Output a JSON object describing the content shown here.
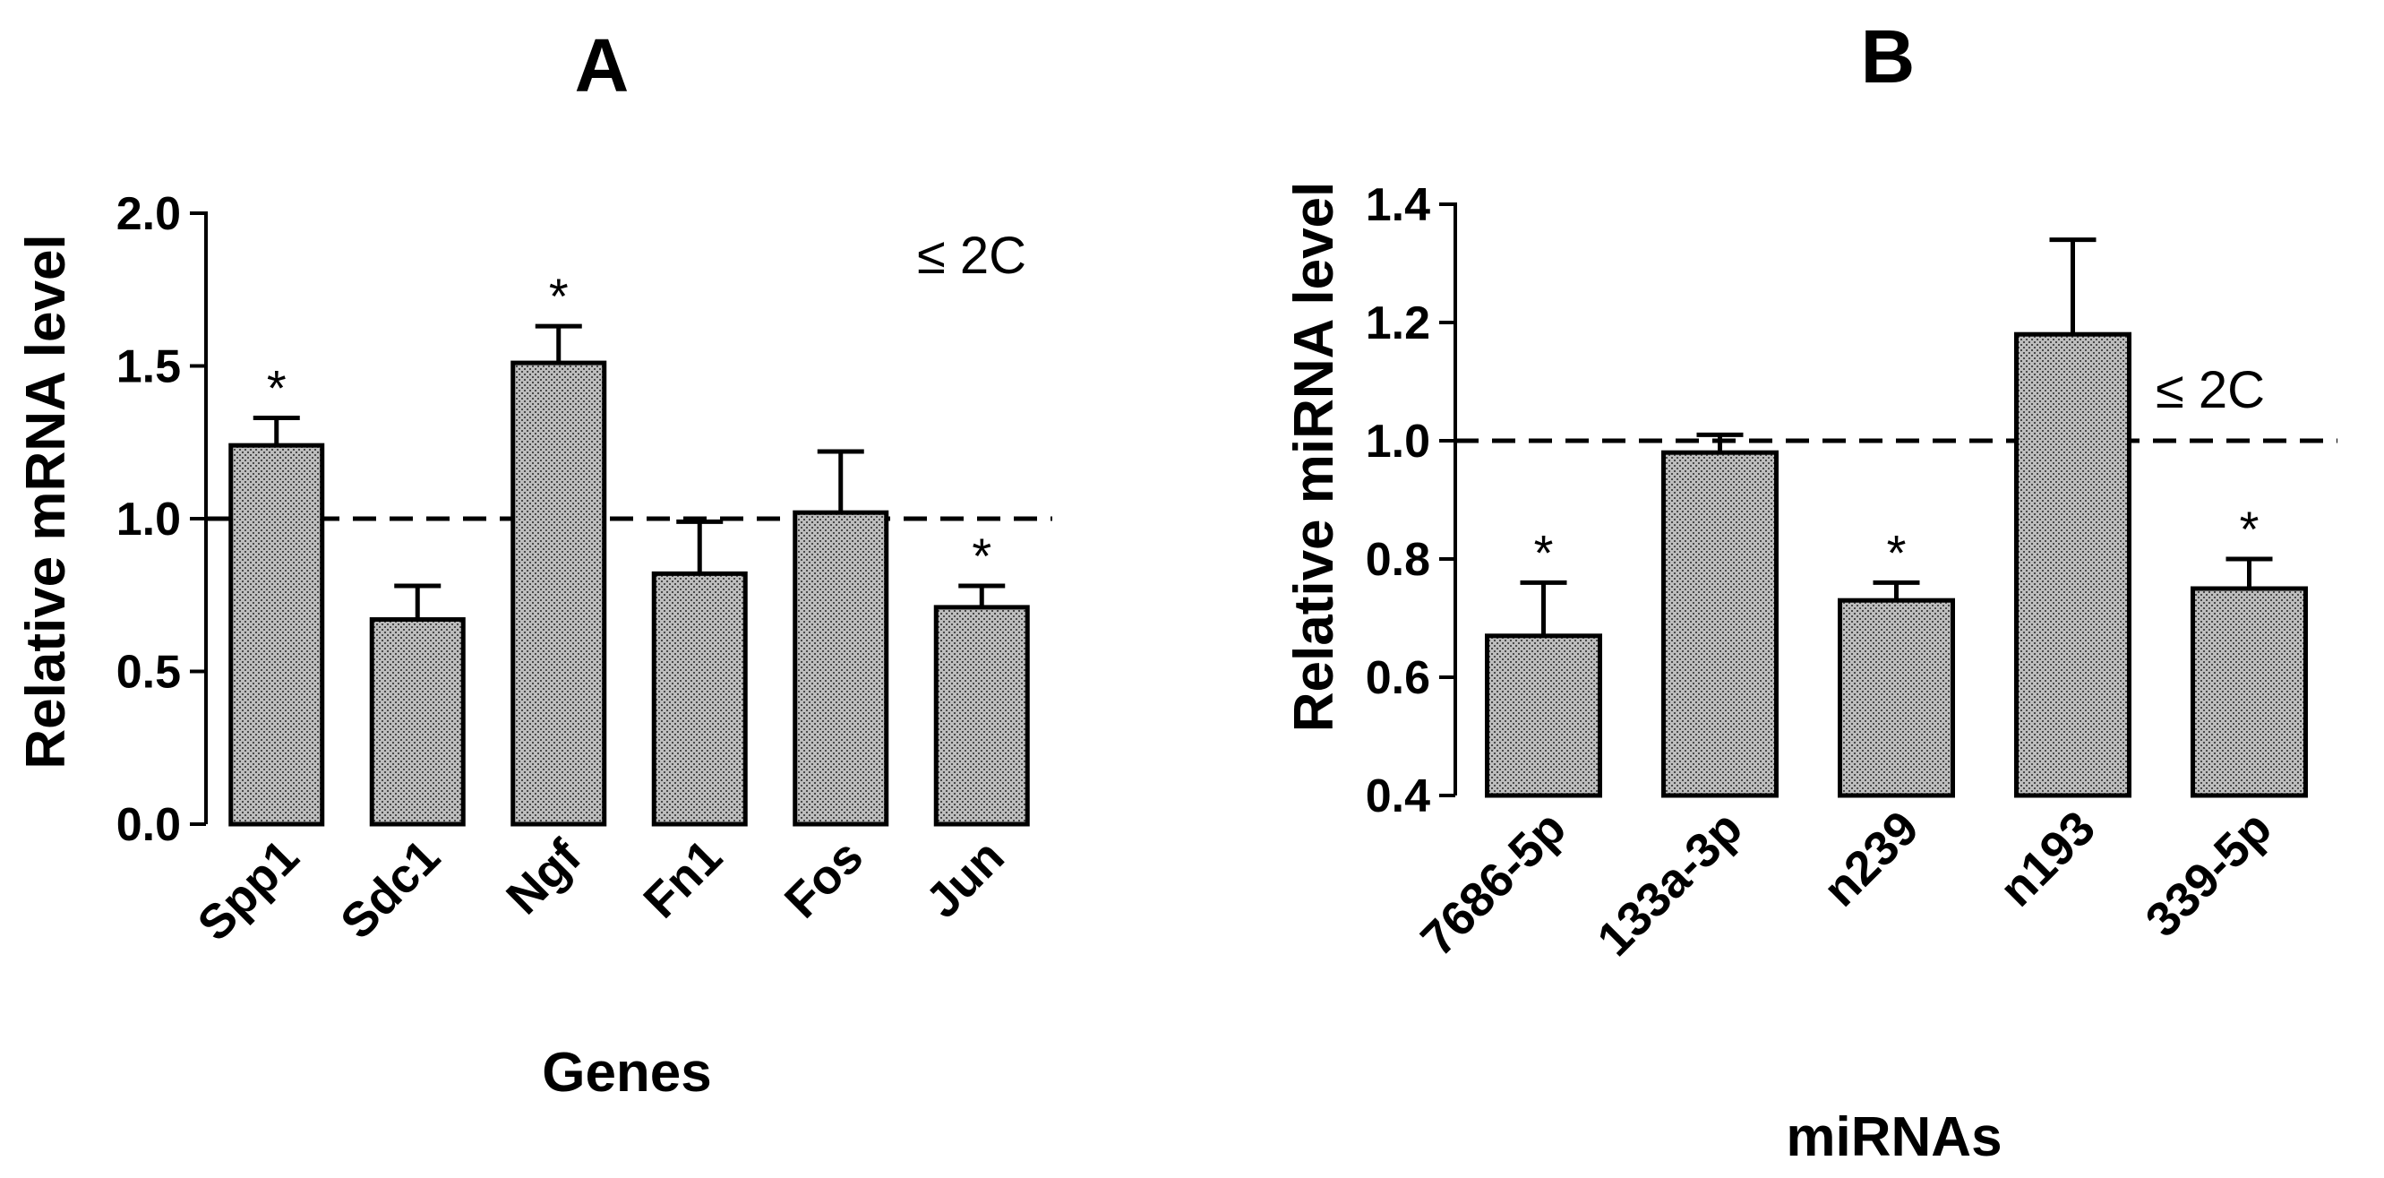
{
  "chart_data": [
    {
      "type": "bar",
      "title": "A",
      "xlabel": "Genes",
      "ylabel": "Relative mRNA level",
      "ylim": [
        0,
        2.0
      ],
      "yticks": [
        "0.0",
        "0.5",
        "1.0",
        "1.5",
        "2.0"
      ],
      "categories": [
        "Spp1",
        "Sdc1",
        "Ngf",
        "Fn1",
        "Fos",
        "Jun"
      ],
      "values": [
        1.24,
        0.67,
        1.51,
        0.82,
        1.02,
        0.71
      ],
      "errors": [
        0.09,
        0.11,
        0.12,
        0.17,
        0.2,
        0.07
      ],
      "significance": [
        "*",
        "",
        "*",
        "",
        "",
        "*"
      ],
      "reference_line": {
        "value": 1.0,
        "style": "dashed",
        "label": "≤ 2C"
      }
    },
    {
      "type": "bar",
      "title": "B",
      "xlabel": "miRNAs",
      "ylabel": "Relative miRNA level",
      "ylim": [
        0.4,
        1.4
      ],
      "yticks": [
        "0.4",
        "0.6",
        "0.8",
        "1.0",
        "1.2",
        "1.4"
      ],
      "categories": [
        "7686-5p",
        "133a-3p",
        "n239",
        "n193",
        "339-5p"
      ],
      "values": [
        0.67,
        0.98,
        0.73,
        1.18,
        0.75
      ],
      "errors": [
        0.09,
        0.03,
        0.03,
        0.16,
        0.05
      ],
      "significance": [
        "*",
        "",
        "*",
        "",
        "*"
      ],
      "reference_line": {
        "value": 1.0,
        "style": "dashed",
        "label": "≤ 2C"
      }
    }
  ]
}
